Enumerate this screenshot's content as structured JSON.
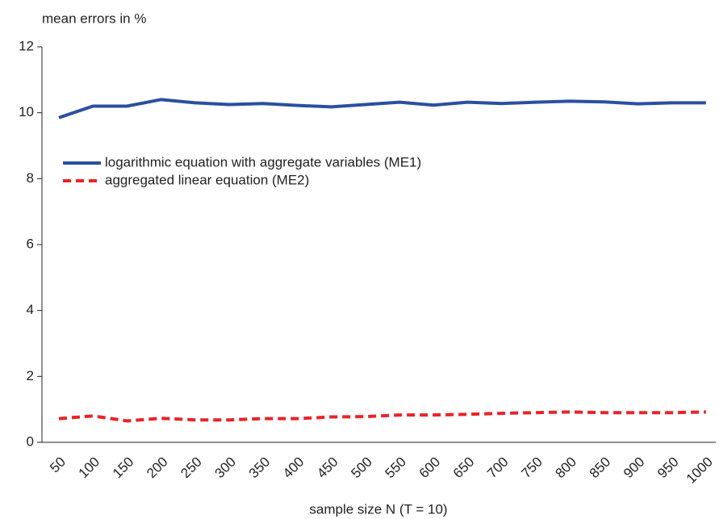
{
  "chart_data": {
    "type": "line",
    "title": "mean errors in %",
    "x_label": "sample size N (T = 10)",
    "categories": [
      "50",
      "100",
      "150",
      "200",
      "250",
      "300",
      "350",
      "400",
      "450",
      "500",
      "550",
      "600",
      "650",
      "700",
      "750",
      "800",
      "850",
      "900",
      "950",
      "1000"
    ],
    "series": [
      {
        "name": "logarithmic equation with aggregate variables (ME1)",
        "color": "#2b4fa0",
        "dash": "solid",
        "values": [
          9.85,
          10.2,
          10.2,
          10.4,
          10.3,
          10.25,
          10.28,
          10.22,
          10.18,
          10.25,
          10.32,
          10.23,
          10.32,
          10.28,
          10.32,
          10.35,
          10.33,
          10.27,
          10.3,
          10.3
        ]
      },
      {
        "name": "aggregated linear equation (ME2)",
        "color": "#e8232a",
        "dash": "dashed",
        "values": [
          0.72,
          0.8,
          0.65,
          0.73,
          0.68,
          0.68,
          0.72,
          0.72,
          0.77,
          0.78,
          0.83,
          0.83,
          0.85,
          0.88,
          0.9,
          0.92,
          0.9,
          0.9,
          0.9,
          0.92
        ]
      }
    ],
    "ylim": [
      0,
      12
    ],
    "yticks": [
      0,
      2,
      4,
      6,
      8,
      10,
      12
    ],
    "legend": "upper left"
  }
}
